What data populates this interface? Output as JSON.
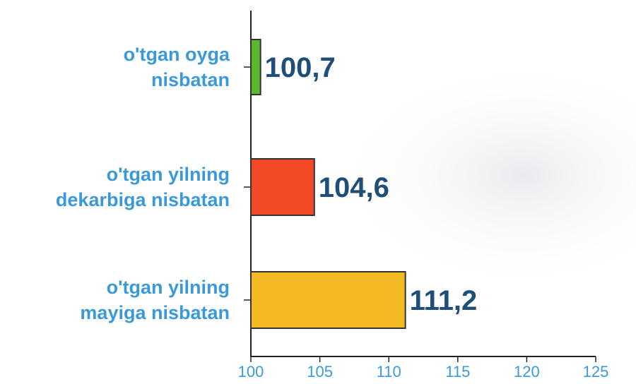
{
  "chart_data": {
    "type": "hbar",
    "categories": [
      "o'tgan oyga\nnisbatan",
      "o'tgan yilning\ndekarbiga nisbatan",
      "o'tgan yilning\nmayiga nisbatan"
    ],
    "values": [
      100.7,
      104.6,
      111.2
    ],
    "value_labels": [
      "100,7",
      "104,6",
      "111,2"
    ],
    "colors": [
      "#5cb82e",
      "#f24a24",
      "#f5b924"
    ],
    "xlim": [
      100,
      125
    ],
    "xticks": [
      100,
      105,
      110,
      115,
      120,
      125
    ]
  }
}
